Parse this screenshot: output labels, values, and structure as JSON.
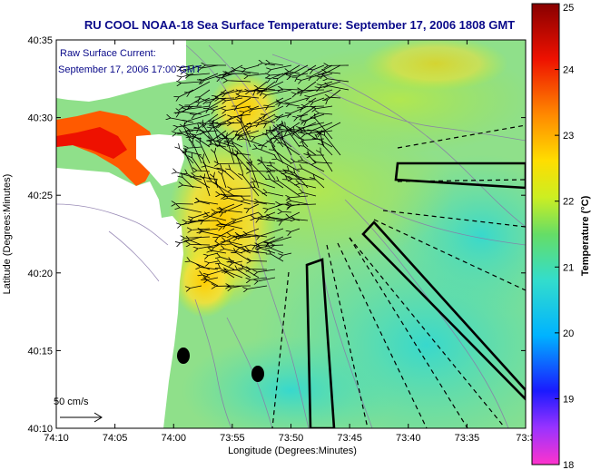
{
  "title": "RU COOL  NOAA-18  Sea Surface Temperature:  September 17, 2006 1808 GMT",
  "current": {
    "label": "Raw Surface Current:",
    "time": "September 17, 2006 17:00 GMT"
  },
  "scale_label": "50 cm/s",
  "axes": {
    "xlabel": "Longitude (Degrees:Minutes)",
    "ylabel": "Latitude (Degrees:Minutes)",
    "xticks": [
      "74:10",
      "74:05",
      "74:00",
      "73:55",
      "73:50",
      "73:45",
      "73:40",
      "73:35",
      "73:3"
    ],
    "yticks": [
      "40:35",
      "40:30",
      "40:25",
      "40:20",
      "40:15",
      "40:10"
    ]
  },
  "colorbar": {
    "label": "Temperature (°C)",
    "min": 18,
    "max": 25,
    "ticks": [
      "25",
      "24",
      "23",
      "22",
      "21",
      "20",
      "19",
      "18"
    ],
    "colors": [
      "#ff33cc",
      "#9933ff",
      "#1a1aff",
      "#00b3ff",
      "#33ddcc",
      "#66dd66",
      "#ccee22",
      "#ffdd00",
      "#ff8800",
      "#ee1100",
      "#880000"
    ]
  },
  "colors": {
    "land": "#ffffff",
    "water_mid": "#8fe08a",
    "water_offshore": "#5fd6c0",
    "warm_band": "#ffd21a",
    "hot": "#ff5a00",
    "text": "#0a0a8a"
  }
}
